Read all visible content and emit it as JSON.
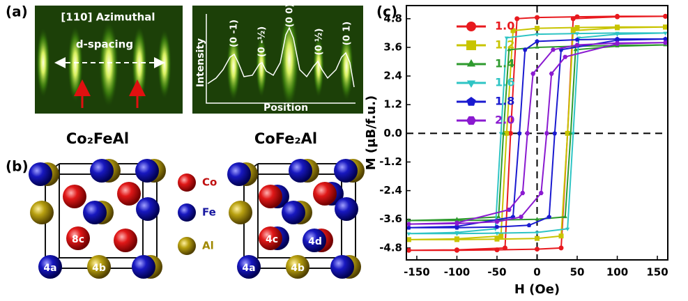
{
  "panels": {
    "a": "(a)",
    "b": "(b)",
    "c": "(c)"
  },
  "rheed": {
    "azimuth": "[110] Azimuthal",
    "spacing": "d-spacing",
    "y_label": "Intensity",
    "x_label": "Position",
    "peaks": [
      "(0 -1)",
      "(0 -½)",
      "(0 0)",
      "(0 ½)",
      "(0 1)"
    ]
  },
  "structures": {
    "left_title": "Co₂FeAl",
    "right_title": "CoFe₂Al",
    "legend": [
      "Co",
      "Fe",
      "Al"
    ],
    "left_sites": [
      "8c",
      "4a",
      "4b"
    ],
    "right_sites": [
      "4c",
      "4d",
      "4a",
      "4b"
    ]
  },
  "chart_data": {
    "type": "line",
    "x_label": "H (Oe)",
    "y_label": "M (μB/f.u.)",
    "xlim": [
      -163,
      163
    ],
    "ylim": [
      -5.3,
      5.35
    ],
    "xticks": [
      -150,
      -100,
      -50,
      0,
      50,
      100,
      150
    ],
    "yticks": [
      -4.8,
      -3.6,
      -2.4,
      -1.2,
      {
        "value": 0,
        "label": "0.0"
      },
      1.2,
      2.4,
      3.6,
      4.8
    ],
    "legend": "upper left",
    "series": [
      {
        "name": "1.0",
        "color": "#e8191e",
        "marker": "circle",
        "x": [
          160,
          100,
          50,
          0,
          -25,
          -33,
          -40,
          -100,
          -160,
          -100,
          -50,
          0,
          30,
          38,
          45,
          100,
          160
        ],
        "values": [
          4.9,
          4.9,
          4.88,
          4.85,
          4.8,
          0,
          -4.8,
          -4.88,
          -4.9,
          -4.9,
          -4.88,
          -4.85,
          -4.8,
          0,
          4.8,
          4.88,
          4.9
        ]
      },
      {
        "name": "1.2",
        "color": "#c8c400",
        "marker": "square",
        "x": [
          160,
          100,
          50,
          0,
          -30,
          -38,
          -45,
          -100,
          -160,
          -100,
          -50,
          0,
          30,
          38,
          45,
          100,
          160
        ],
        "values": [
          4.45,
          4.45,
          4.43,
          4.4,
          4.3,
          0,
          -4.3,
          -4.42,
          -4.45,
          -4.45,
          -4.43,
          -4.4,
          -4.3,
          0,
          4.3,
          4.42,
          4.45
        ]
      },
      {
        "name": "1.4",
        "color": "#2e9a2e",
        "marker": "triangle-up",
        "x": [
          160,
          100,
          50,
          0,
          -35,
          -42,
          -48,
          -100,
          -160,
          -100,
          -50,
          0,
          35,
          42,
          48,
          100,
          160
        ],
        "values": [
          3.7,
          3.68,
          3.65,
          3.6,
          3.5,
          0,
          -3.5,
          -3.6,
          -3.65,
          -3.65,
          -3.63,
          -3.6,
          -3.5,
          0,
          3.5,
          3.65,
          3.7
        ]
      },
      {
        "name": "1.6",
        "color": "#2ec4c4",
        "marker": "triangle-down",
        "x": [
          160,
          100,
          50,
          0,
          -38,
          -45,
          -52,
          -100,
          -160,
          -100,
          -50,
          0,
          38,
          45,
          52,
          100,
          160
        ],
        "values": [
          4.2,
          4.2,
          4.18,
          4.15,
          4.0,
          0,
          -4.0,
          -4.15,
          -4.2,
          -4.2,
          -4.18,
          -4.15,
          -4.0,
          0,
          4.0,
          4.15,
          4.2
        ]
      },
      {
        "name": "1.8",
        "color": "#1a1ad0",
        "marker": "pentagon",
        "x": [
          160,
          100,
          50,
          0,
          -15,
          -22,
          -30,
          -100,
          -160,
          -100,
          -50,
          -10,
          15,
          22,
          30,
          100,
          160
        ],
        "values": [
          3.95,
          3.95,
          3.92,
          3.85,
          3.5,
          0,
          -3.5,
          -3.9,
          -3.95,
          -3.95,
          -3.92,
          -3.85,
          -3.5,
          0,
          3.5,
          3.9,
          3.95
        ]
      },
      {
        "name": "2.0",
        "color": "#8a1ad0",
        "marker": "hexagon",
        "x": [
          160,
          100,
          50,
          20,
          -5,
          -12,
          -18,
          -35,
          -100,
          -160,
          -100,
          -50,
          -20,
          5,
          12,
          18,
          35,
          100,
          160
        ],
        "values": [
          3.8,
          3.78,
          3.7,
          3.5,
          2.5,
          0,
          -2.5,
          -3.2,
          -3.75,
          -3.8,
          -3.78,
          -3.7,
          -3.5,
          -2.5,
          0,
          2.5,
          3.2,
          3.75,
          3.8
        ]
      }
    ]
  }
}
